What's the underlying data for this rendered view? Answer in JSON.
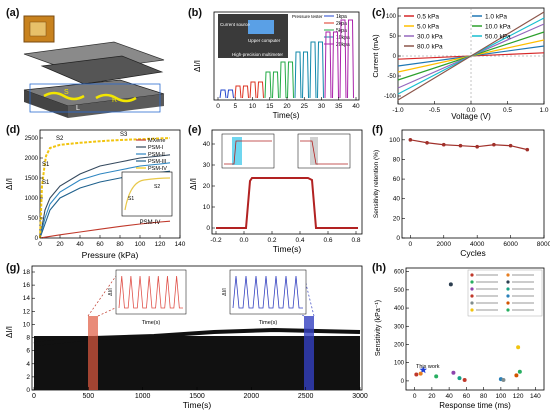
{
  "figure": {
    "panel_labels": [
      "(a)",
      "(b)",
      "(c)",
      "(d)",
      "(e)",
      "(f)",
      "(g)",
      "(h)"
    ]
  },
  "panel_a": {
    "layer_labels": [
      "S",
      "L",
      "R"
    ]
  },
  "panel_b": {
    "ylabel": "ΔI/I",
    "xlabel": "Time(s)",
    "xticks": [
      "0",
      "5",
      "10",
      "15",
      "20",
      "25",
      "30",
      "35",
      "40"
    ],
    "photo_labels": [
      "Current source",
      "Upper computer",
      "Pressure tester",
      "High-precision multimeter"
    ],
    "legend": [
      "1kpa",
      "2kpa",
      "5kpa",
      "10kpa",
      "20kpa"
    ],
    "colors": [
      "#2244cc",
      "#dd3322",
      "#22aa44",
      "#1188aa",
      "#aa22aa"
    ]
  },
  "panel_c": {
    "ylabel": "Current (mA)",
    "xlabel": "Voltage (V)",
    "xticks": [
      "-1.0",
      "-0.5",
      "0.0",
      "0.5",
      "1.0"
    ],
    "yticks": [
      "100",
      "50",
      "0",
      "-50",
      "-100"
    ],
    "legend": [
      "0.5 kPa",
      "1.0 kPa",
      "5.0 kPa",
      "10.0 kPa",
      "30.0 kPa",
      "50.0 kPa",
      "80.0 kPa"
    ],
    "colors": [
      "#d62728",
      "#1f77b4",
      "#ffbf00",
      "#2ca02c",
      "#9467bd",
      "#17becf",
      "#8c564b"
    ]
  },
  "panel_d": {
    "ylabel": "ΔI/I",
    "xlabel": "Pressure (kPa)",
    "xticks": [
      "0",
      "20",
      "40",
      "60",
      "80",
      "100",
      "120",
      "140"
    ],
    "yticks": [
      "2500",
      "2000",
      "1500",
      "1000",
      "500",
      "0"
    ],
    "legend": [
      "MXene",
      "PSM-I",
      "PSM-II",
      "PSM-III",
      "PSM-IV"
    ],
    "colors": [
      "#c0392b",
      "#34495e",
      "#2e86c1",
      "#1f618d",
      "#f1c40f"
    ],
    "annotations": [
      "S3",
      "S2",
      "S1",
      "S1"
    ],
    "inset_title": "PSM-IV",
    "inset_labels": [
      "S2",
      "S1"
    ]
  },
  "panel_e": {
    "ylabel": "ΔI/I",
    "xlabel": "Time(s)",
    "xticks": [
      "-0.2",
      "0.0",
      "0.2",
      "0.4",
      "0.6",
      "0.8"
    ],
    "yticks": [
      "40",
      "30",
      "20",
      "10",
      "0"
    ]
  },
  "panel_f": {
    "ylabel": "Sensitivity retention (%)",
    "xlabel": "Cycles",
    "xticks": [
      "0",
      "2000",
      "4000",
      "6000",
      "8000"
    ],
    "yticks": [
      "100",
      "80",
      "60",
      "40",
      "20",
      "0"
    ]
  },
  "panel_g": {
    "ylabel": "ΔI/I",
    "xlabel": "Time(s)",
    "xticks": [
      "0",
      "500",
      "1000",
      "1500",
      "2000",
      "2500",
      "3000"
    ],
    "yticks": [
      "18",
      "16",
      "14",
      "12",
      "10",
      "8",
      "6",
      "4",
      "2",
      "0"
    ],
    "inset1_xlabel": "Time(s)",
    "inset2_xlabel": "Time(s)",
    "inset_ylabel": "ΔI/I"
  },
  "panel_h": {
    "ylabel": "Sensitivity (kPa⁻¹)",
    "xlabel": "Response time (ms)",
    "xticks": [
      "0",
      "20",
      "40",
      "60",
      "80",
      "100",
      "120",
      "140"
    ],
    "yticks": [
      "600",
      "500",
      "400",
      "300",
      "200",
      "100",
      "0"
    ],
    "this_work": "This work"
  },
  "chart_data": [
    {
      "type": "line",
      "panel": "c",
      "xlabel": "Voltage (V)",
      "ylabel": "Current (mA)",
      "xlim": [
        -1.0,
        1.0
      ],
      "ylim": [
        -120,
        120
      ],
      "series": [
        {
          "name": "0.5 kPa",
          "x": [
            -1.0,
            1.0
          ],
          "values": [
            -8,
            8
          ]
        },
        {
          "name": "1.0 kPa",
          "x": [
            -1.0,
            1.0
          ],
          "values": [
            -25,
            25
          ]
        },
        {
          "name": "5.0 kPa",
          "x": [
            -1.0,
            1.0
          ],
          "values": [
            -40,
            40
          ]
        },
        {
          "name": "10.0 kPa",
          "x": [
            -1.0,
            1.0
          ],
          "values": [
            -60,
            60
          ]
        },
        {
          "name": "30.0 kPa",
          "x": [
            -1.0,
            1.0
          ],
          "values": [
            -80,
            80
          ]
        },
        {
          "name": "50.0 kPa",
          "x": [
            -1.0,
            1.0
          ],
          "values": [
            -95,
            95
          ]
        },
        {
          "name": "80.0 kPa",
          "x": [
            -1.0,
            1.0
          ],
          "values": [
            -110,
            110
          ]
        }
      ]
    },
    {
      "type": "line",
      "panel": "d",
      "xlabel": "Pressure (kPa)",
      "ylabel": "ΔI/I",
      "xlim": [
        0,
        140
      ],
      "ylim": [
        0,
        2700
      ],
      "series": [
        {
          "name": "MXene",
          "x": [
            0,
            5,
            20,
            40,
            60,
            80,
            100,
            120,
            130
          ],
          "values": [
            0,
            20,
            80,
            150,
            220,
            290,
            350,
            400,
            420
          ]
        },
        {
          "name": "PSM-I",
          "x": [
            0,
            5,
            10,
            20,
            40,
            60,
            80,
            100,
            120,
            130
          ],
          "values": [
            0,
            700,
            1000,
            1300,
            1600,
            1800,
            1900,
            2000,
            2050,
            2080
          ]
        },
        {
          "name": "PSM-II",
          "x": [
            0,
            5,
            10,
            20,
            40,
            60,
            80,
            100,
            120,
            130
          ],
          "values": [
            0,
            500,
            850,
            1150,
            1450,
            1600,
            1700,
            1800,
            1850,
            1880
          ]
        },
        {
          "name": "PSM-III",
          "x": [
            0,
            5,
            10,
            20,
            40,
            60,
            80,
            100,
            120,
            130
          ],
          "values": [
            0,
            350,
            700,
            1000,
            1250,
            1400,
            1500,
            1580,
            1640,
            1670
          ]
        },
        {
          "name": "PSM-IV",
          "x": [
            0,
            2,
            4,
            6,
            10,
            20,
            40,
            60,
            80,
            100,
            120,
            130
          ],
          "values": [
            0,
            1300,
            1700,
            2050,
            2250,
            2330,
            2380,
            2420,
            2450,
            2470,
            2490,
            2500
          ]
        }
      ]
    },
    {
      "type": "line",
      "panel": "f",
      "xlabel": "Cycles",
      "ylabel": "Sensitivity retention (%)",
      "xlim": [
        -500,
        8000
      ],
      "ylim": [
        0,
        110
      ],
      "series": [
        {
          "name": "",
          "x": [
            0,
            1000,
            2000,
            3000,
            4000,
            5000,
            6000,
            7000
          ],
          "values": [
            100,
            97,
            95,
            94,
            93,
            95,
            94,
            90
          ]
        }
      ]
    },
    {
      "type": "scatter",
      "panel": "h",
      "xlabel": "Response time (ms)",
      "ylabel": "Sensitivity (kPa⁻¹)",
      "xlim": [
        -10,
        150
      ],
      "ylim": [
        -50,
        620
      ],
      "series": [
        {
          "name": "This work",
          "x": [
            10
          ],
          "values": [
            60
          ]
        },
        {
          "name": "",
          "x": [
            2,
            7,
            25,
            42,
            45,
            52,
            58,
            100,
            103,
            118,
            120,
            122
          ],
          "values": [
            35,
            40,
            25,
            530,
            45,
            15,
            5,
            10,
            5,
            30,
            185,
            50
          ]
        }
      ]
    }
  ]
}
